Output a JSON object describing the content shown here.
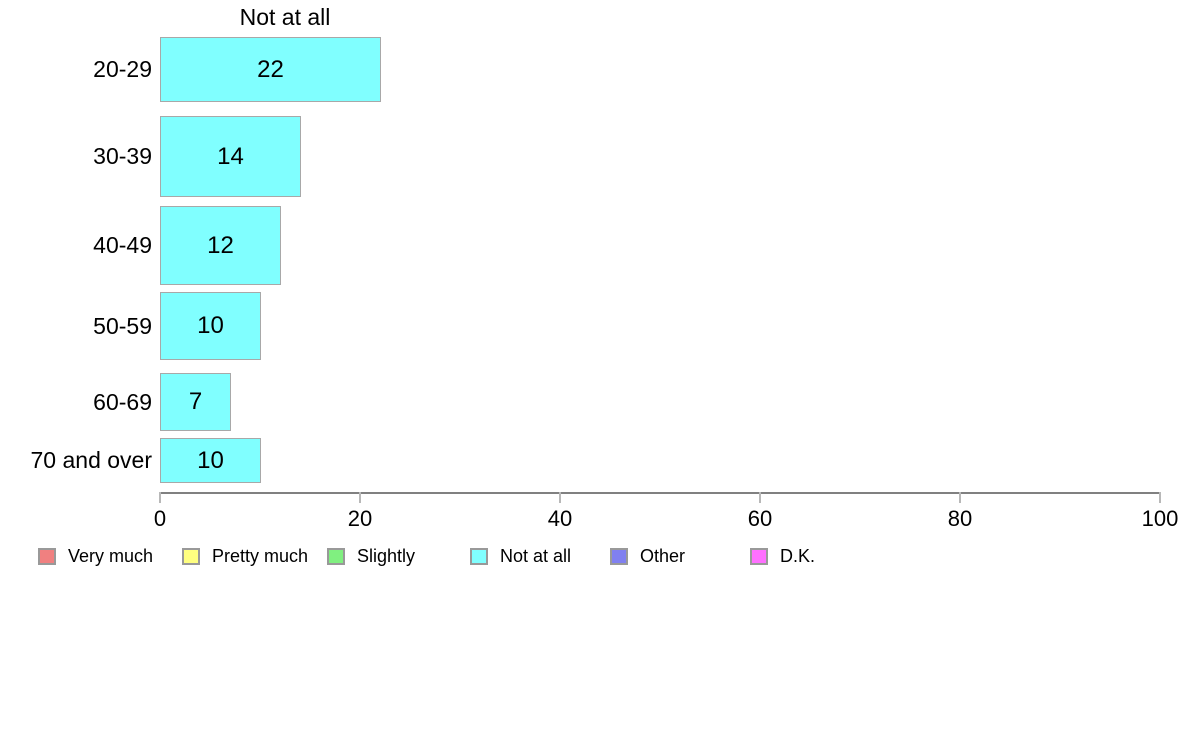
{
  "chart_data": {
    "type": "bar",
    "orientation": "horizontal",
    "title": "Not at all",
    "categories": [
      "20-29",
      "30-39",
      "40-49",
      "50-59",
      "60-69",
      "70 and over"
    ],
    "values": [
      22,
      14,
      12,
      10,
      7,
      10
    ],
    "xlabel": "",
    "ylabel": "",
    "xlim": [
      0,
      100
    ],
    "x_ticks": [
      0,
      20,
      40,
      60,
      80,
      100
    ],
    "grid": false,
    "bar_value_labels_shown": true,
    "bar_color": "#80FFFF",
    "bar_border_color": "#A8A8A8",
    "axis_line_color": "#808080",
    "tick_mark_color": "#B8B8B8",
    "legend_position": "bottom",
    "legend": [
      {
        "label": "Very much",
        "color": "#F08080"
      },
      {
        "label": "Pretty much",
        "color": "#FFFF80"
      },
      {
        "label": "Slightly",
        "color": "#80F080"
      },
      {
        "label": "Not at all",
        "color": "#80FFFF"
      },
      {
        "label": "Other",
        "color": "#8080F0"
      },
      {
        "label": "D.K.",
        "color": "#FF70FF"
      }
    ],
    "bar_thickness_px": [
      65,
      81,
      79,
      68,
      58,
      45
    ]
  }
}
